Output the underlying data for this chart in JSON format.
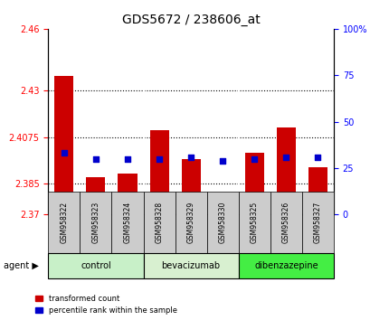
{
  "title": "GDS5672 / 238606_at",
  "samples": [
    "GSM958322",
    "GSM958323",
    "GSM958324",
    "GSM958328",
    "GSM958329",
    "GSM958330",
    "GSM958325",
    "GSM958326",
    "GSM958327"
  ],
  "red_values": [
    2.437,
    2.388,
    2.39,
    2.411,
    2.397,
    2.374,
    2.4,
    2.412,
    2.393
  ],
  "blue_percentiles": [
    33,
    30,
    30,
    30,
    31,
    29,
    30,
    31,
    31
  ],
  "ylim_left": [
    2.37,
    2.46
  ],
  "ylim_right": [
    0,
    100
  ],
  "yticks_left": [
    2.37,
    2.385,
    2.4075,
    2.43,
    2.46
  ],
  "yticks_right": [
    0,
    25,
    50,
    75,
    100
  ],
  "ytick_labels_left": [
    "2.37",
    "2.385",
    "2.4075",
    "2.43",
    "2.46"
  ],
  "ytick_labels_right": [
    "0",
    "25",
    "50",
    "75",
    "100%"
  ],
  "groups": [
    {
      "label": "control",
      "indices": [
        0,
        1,
        2
      ],
      "color": "#c8f0c8"
    },
    {
      "label": "bevacizumab",
      "indices": [
        3,
        4,
        5
      ],
      "color": "#d8f0d0"
    },
    {
      "label": "dibenzazepine",
      "indices": [
        6,
        7,
        8
      ],
      "color": "#44ee44"
    }
  ],
  "agent_label": "agent",
  "red_color": "#cc0000",
  "blue_color": "#0000cc",
  "bar_width": 0.6,
  "bar_bottom": 2.37,
  "grid_color": "#000000",
  "bg_color": "#ffffff",
  "sample_area_color": "#d0d0d0"
}
